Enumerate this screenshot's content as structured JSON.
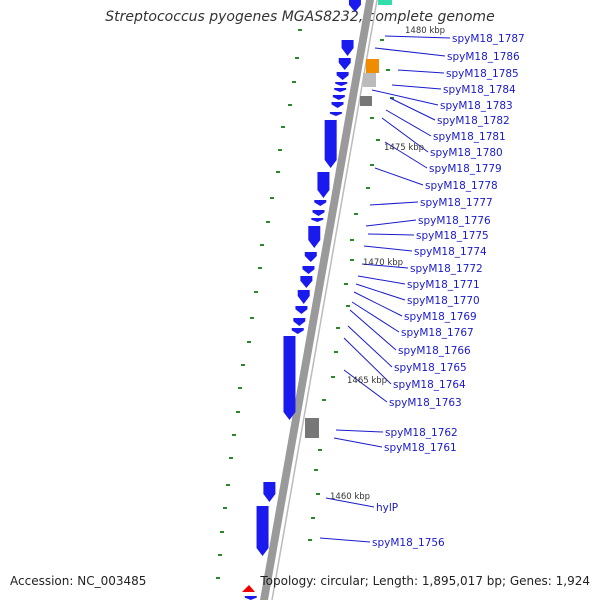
{
  "title": "Streptococcus pyogenes MGAS8232, complete genome",
  "footer": {
    "accession": "Accession: NC_003485",
    "summary": "Topology: circular; Length: 1,895,017 bp; Genes: 1,924"
  },
  "colors": {
    "backbone": "#999999",
    "cds": "#1a1aee",
    "gc_tick": "#2a8a2a",
    "label": "#1a1acc",
    "rna_orange": "#f08c00",
    "rna_grey": "#777777",
    "teal": "#33ddaa",
    "origin_marker": "#ee0000"
  },
  "scale_labels": [
    "1480 kbp",
    "1475 kbp",
    "1470 kbp",
    "1465 kbp",
    "1460 kbp"
  ],
  "genes": [
    "spyM18_1787",
    "spyM18_1786",
    "spyM18_1785",
    "spyM18_1784",
    "spyM18_1783",
    "spyM18_1782",
    "spyM18_1781",
    "spyM18_1780",
    "spyM18_1779",
    "spyM18_1778",
    "spyM18_1777",
    "spyM18_1776",
    "spyM18_1775",
    "spyM18_1774",
    "spyM18_1772",
    "spyM18_1771",
    "spyM18_1770",
    "spyM18_1769",
    "spyM18_1767",
    "spyM18_1766",
    "spyM18_1765",
    "spyM18_1764",
    "spyM18_1763",
    "spyM18_1762",
    "spyM18_1761",
    "hylP",
    "spyM18_1756"
  ]
}
